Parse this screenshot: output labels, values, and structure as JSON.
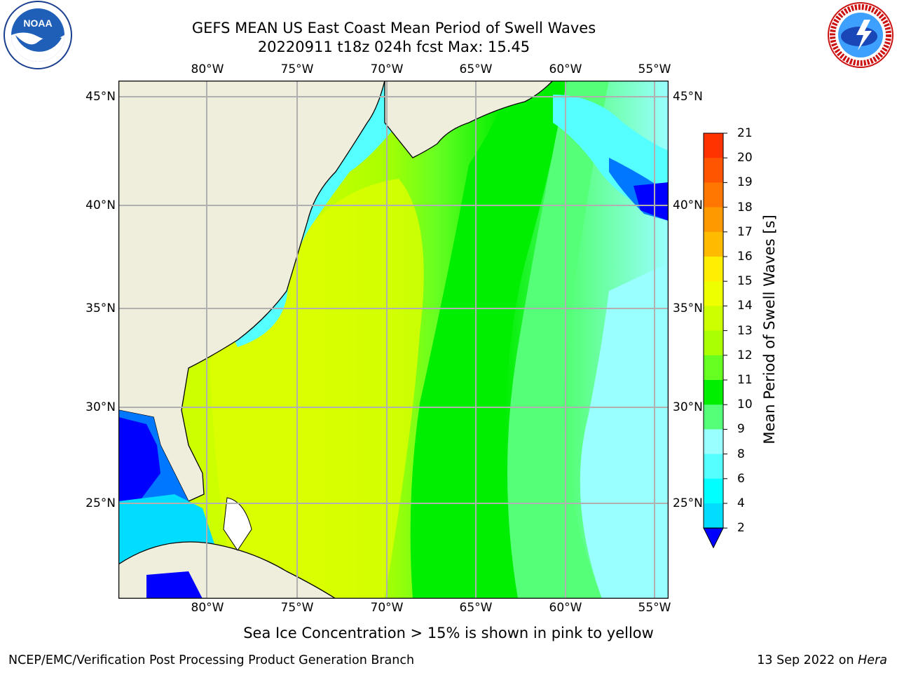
{
  "title_line1": "GEFS MEAN US East Coast Mean Period of Swell Waves",
  "title_line2": "20220911 t18z 024h fcst   Max: 15.45",
  "lon_labels": [
    "80°W",
    "75°W",
    "70°W",
    "65°W",
    "60°W",
    "55°W"
  ],
  "lat_labels": [
    "45°N",
    "40°N",
    "35°N",
    "30°N",
    "25°N"
  ],
  "colorbar": {
    "label": "Mean Period of Swell Waves [s]",
    "ticks": [
      "21",
      "20",
      "19",
      "18",
      "17",
      "16",
      "15",
      "14",
      "13",
      "12",
      "11",
      "10",
      "9",
      "8",
      "6",
      "4",
      "2"
    ],
    "colors": [
      "#ff0000",
      "#ff3300",
      "#ff5500",
      "#ff7700",
      "#ff9900",
      "#ffbb00",
      "#ffee00",
      "#eeff00",
      "#ccff00",
      "#aaff00",
      "#66ff22",
      "#00ee00",
      "#55ff77",
      "#99ffff",
      "#55ffff",
      "#00ffff",
      "#00ddff",
      "#0077ff",
      "#0000ff"
    ]
  },
  "caption": "Sea Ice Concentration > 15% is shown in pink to yellow",
  "footer_left": "NCEP/EMC/Verification Post Processing Product Generation Branch",
  "footer_right_date": "13 Sep 2022 on ",
  "footer_right_machine": "Hera",
  "logos": {
    "noaa_text": "NOAA",
    "nws_text": "NATIONAL WEATHER SERVICE"
  }
}
